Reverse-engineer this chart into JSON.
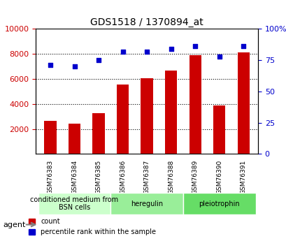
{
  "title": "GDS1518 / 1370894_at",
  "categories": [
    "GSM76383",
    "GSM76384",
    "GSM76385",
    "GSM76386",
    "GSM76387",
    "GSM76388",
    "GSM76389",
    "GSM76390",
    "GSM76391"
  ],
  "counts": [
    2650,
    2450,
    3250,
    5550,
    6050,
    6650,
    7900,
    3900,
    8100
  ],
  "percentiles": [
    71,
    70,
    75,
    82,
    82,
    84,
    86,
    78,
    86
  ],
  "ylim_left": [
    0,
    10000
  ],
  "ylim_right": [
    0,
    100
  ],
  "yticks_left": [
    2000,
    4000,
    6000,
    8000,
    10000
  ],
  "yticks_right": [
    0,
    25,
    50,
    75,
    100
  ],
  "bar_color": "#cc0000",
  "dot_color": "#0000cc",
  "grid_color": "#000000",
  "bg_color": "#ffffff",
  "plot_bg_color": "#ffffff",
  "agent_groups": [
    {
      "label": "conditioned medium from\nBSN cells",
      "start": 0,
      "end": 3,
      "color": "#ccffcc"
    },
    {
      "label": "heregulin",
      "start": 3,
      "end": 6,
      "color": "#99ee99"
    },
    {
      "label": "pleiotrophin",
      "start": 6,
      "end": 9,
      "color": "#66dd66"
    }
  ],
  "xlabel_color": "#cc0000",
  "ylabel_left_color": "#cc0000",
  "ylabel_right_color": "#0000cc",
  "tick_label_color_left": "#cc0000",
  "tick_label_color_right": "#0000cc",
  "legend_count_label": "count",
  "legend_pct_label": "percentile rank within the sample"
}
